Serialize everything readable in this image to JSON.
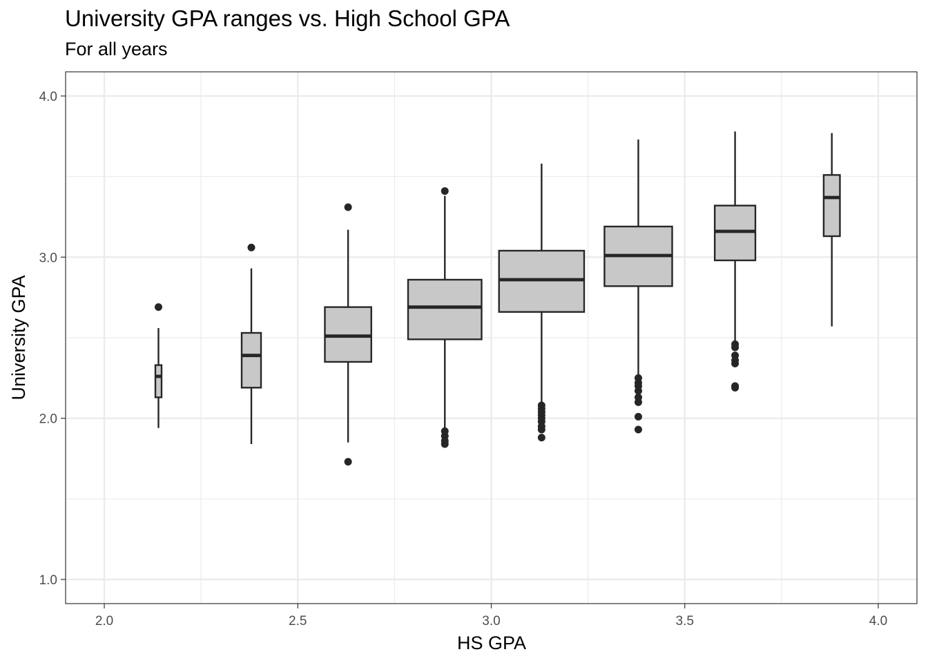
{
  "chart_data": {
    "type": "box",
    "title": "University GPA ranges vs. High School GPA",
    "subtitle": "For all years",
    "xlabel": "HS GPA",
    "ylabel": "University GPA",
    "xlim": [
      1.9,
      4.1
    ],
    "ylim": [
      0.85,
      4.15
    ],
    "x_ticks": [
      2.0,
      2.5,
      3.0,
      3.5,
      4.0
    ],
    "x_tick_labels": [
      "2.0",
      "2.5",
      "3.0",
      "3.5",
      "4.0"
    ],
    "y_ticks": [
      1.0,
      2.0,
      3.0,
      4.0
    ],
    "y_tick_labels": [
      "1.0",
      "2.0",
      "3.0",
      "4.0"
    ],
    "x_minor_ticks": [
      2.25,
      2.75,
      3.25,
      3.75
    ],
    "y_minor_ticks": [
      1.5,
      2.5,
      3.5
    ],
    "grid": true,
    "box_fill": "#c8c8c8",
    "line_color": "#262626",
    "grid_color": "#ebebeb",
    "boxes": [
      {
        "x": 2.14,
        "width": 0.016,
        "whisker_low": 1.94,
        "q1": 2.13,
        "median": 2.26,
        "q3": 2.33,
        "whisker_high": 2.56,
        "outliers": [
          2.69
        ]
      },
      {
        "x": 2.38,
        "width": 0.05,
        "whisker_low": 1.84,
        "q1": 2.19,
        "median": 2.39,
        "q3": 2.53,
        "whisker_high": 2.93,
        "outliers": [
          3.06
        ]
      },
      {
        "x": 2.63,
        "width": 0.12,
        "whisker_low": 1.85,
        "q1": 2.35,
        "median": 2.51,
        "q3": 2.69,
        "whisker_high": 3.17,
        "outliers": [
          3.31,
          1.73
        ]
      },
      {
        "x": 2.88,
        "width": 0.19,
        "whisker_low": 1.93,
        "q1": 2.49,
        "median": 2.69,
        "q3": 2.86,
        "whisker_high": 3.38,
        "outliers": [
          3.41,
          1.92,
          1.89,
          1.86,
          1.84
        ]
      },
      {
        "x": 3.13,
        "width": 0.22,
        "whisker_low": 2.09,
        "q1": 2.66,
        "median": 2.86,
        "q3": 3.04,
        "whisker_high": 3.58,
        "outliers": [
          2.08,
          2.06,
          2.04,
          2.02,
          2.0,
          1.98,
          1.95,
          1.93,
          1.88
        ]
      },
      {
        "x": 3.38,
        "width": 0.175,
        "whisker_low": 2.27,
        "q1": 2.82,
        "median": 3.01,
        "q3": 3.19,
        "whisker_high": 3.73,
        "outliers": [
          2.25,
          2.22,
          2.2,
          2.17,
          2.13,
          2.1,
          2.01,
          1.93
        ]
      },
      {
        "x": 3.63,
        "width": 0.105,
        "whisker_low": 2.47,
        "q1": 2.98,
        "median": 3.16,
        "q3": 3.32,
        "whisker_high": 3.78,
        "outliers": [
          2.46,
          2.44,
          2.39,
          2.36,
          2.34,
          2.2,
          2.19
        ]
      },
      {
        "x": 3.88,
        "width": 0.042,
        "whisker_low": 2.57,
        "q1": 3.13,
        "median": 3.37,
        "q3": 3.51,
        "whisker_high": 3.77,
        "outliers": []
      }
    ]
  }
}
